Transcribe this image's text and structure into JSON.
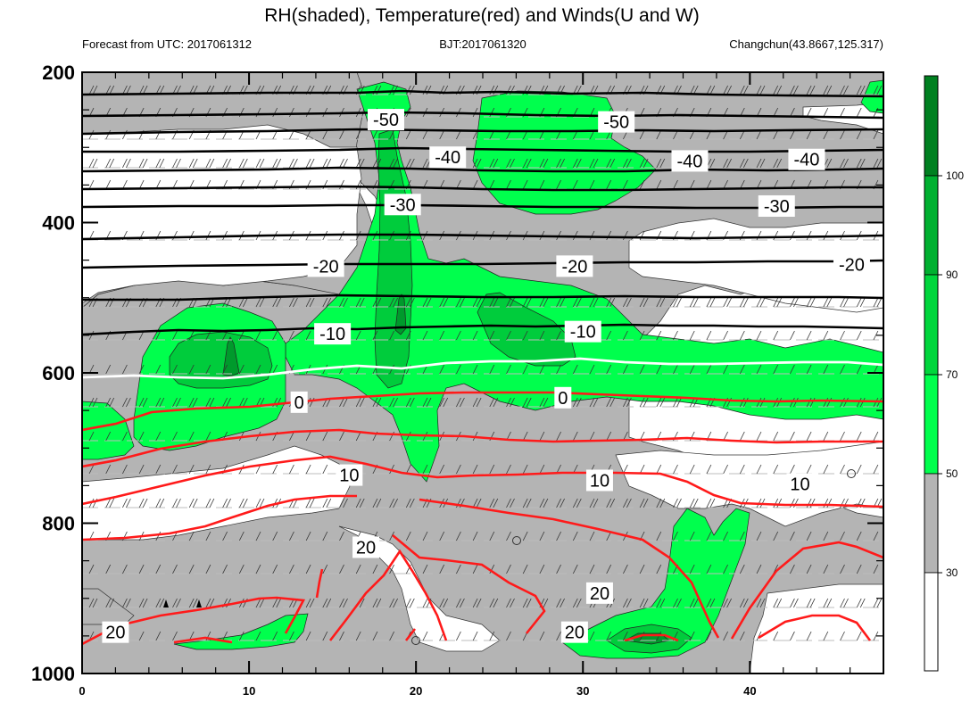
{
  "chart_data": {
    "type": "contour",
    "title": "RH(shaded), Temperature(red) and Winds(U and W)",
    "left_subtitle": "Forecast from UTC: 2017061312",
    "center_subtitle": "BJT:2017061320",
    "right_subtitle": "Changchun(43.8667,125.317)",
    "xlim": [
      0,
      48
    ],
    "ylim": [
      1000,
      200
    ],
    "x_ticks": [
      "0",
      "10",
      "20",
      "30",
      "40"
    ],
    "y_ticks": [
      "200",
      "400",
      "600",
      "800",
      "1000"
    ],
    "colorbar_labels": [
      "30",
      "50",
      "70",
      "90",
      "100"
    ],
    "colorbar_colors": [
      "#ffffff",
      "#b4b4b4",
      "#00ff4d",
      "#00d63c",
      "#00b030",
      "#008020"
    ],
    "temperature_isotherms": [
      {
        "value": -50,
        "p": 232
      },
      {
        "value": -50,
        "p": 258
      },
      {
        "value": -40,
        "p": 310
      },
      {
        "value": -40,
        "p": 333
      },
      {
        "value": -30,
        "p": 365
      },
      {
        "value": -30,
        "p": 388
      },
      {
        "value": -20,
        "p": 448
      },
      {
        "value": -20,
        "p": 490
      },
      {
        "value": -10,
        "p": 540
      },
      {
        "value": -10,
        "p": 585
      },
      {
        "value": 0,
        "p": 630
      }
    ],
    "contour_labels": [
      {
        "text": "-50",
        "x": 18.2,
        "p": 263
      },
      {
        "text": "-50",
        "x": 32,
        "p": 266
      },
      {
        "text": "-40",
        "x": 21.9,
        "p": 313
      },
      {
        "text": "-40",
        "x": 36.4,
        "p": 318
      },
      {
        "text": "-40",
        "x": 43.4,
        "p": 316
      },
      {
        "text": "-30",
        "x": 19.2,
        "p": 376
      },
      {
        "text": "-30",
        "x": 41.6,
        "p": 378
      },
      {
        "text": "-20",
        "x": 14.6,
        "p": 458
      },
      {
        "text": "-20",
        "x": 29.5,
        "p": 458
      },
      {
        "text": "-20",
        "x": 46.1,
        "p": 456
      },
      {
        "text": "-10",
        "x": 15,
        "p": 548
      },
      {
        "text": "-10",
        "x": 30,
        "p": 545
      },
      {
        "text": "0",
        "x": 13,
        "p": 639
      },
      {
        "text": "0",
        "x": 28.8,
        "p": 633
      },
      {
        "text": "10",
        "x": 16,
        "p": 736
      },
      {
        "text": "10",
        "x": 31,
        "p": 743
      },
      {
        "text": "10",
        "x": 43,
        "p": 748
      },
      {
        "text": "20",
        "x": 17,
        "p": 832
      },
      {
        "text": "20",
        "x": 31,
        "p": 893
      },
      {
        "text": "20",
        "x": 2,
        "p": 945
      },
      {
        "text": "20",
        "x": 29.5,
        "p": 945
      }
    ]
  }
}
